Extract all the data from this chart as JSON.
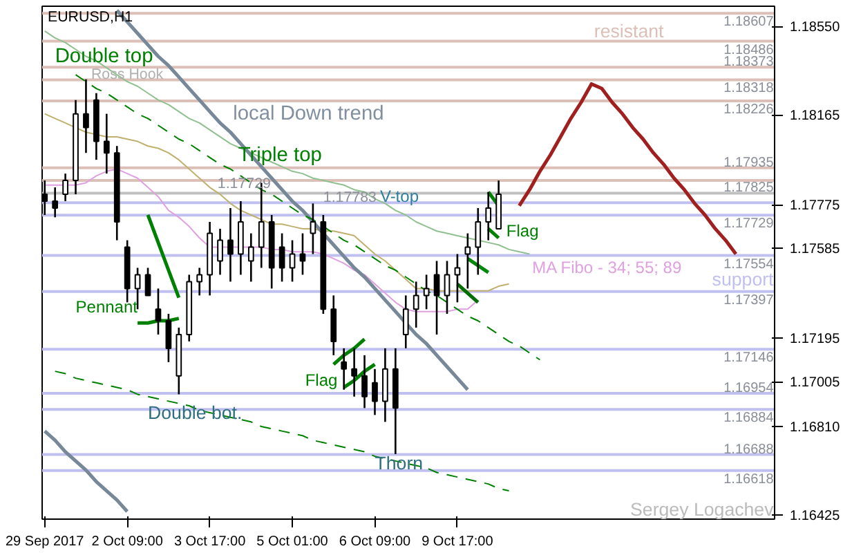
{
  "chart_data": {
    "type": "candlestick",
    "title": "EURUSD,H1",
    "color": "#000000",
    "categories": [
      "29 Sep 2017",
      null,
      null,
      null,
      null,
      null,
      null,
      null,
      "2 Oct 09:00",
      null,
      null,
      null,
      null,
      null,
      null,
      null,
      "3 Oct 17:00",
      null,
      null,
      null,
      null,
      null,
      null,
      null,
      "5 Oct 01:00",
      null,
      null,
      null,
      null,
      null,
      null,
      null,
      "6 Oct 09:00",
      null,
      null,
      null,
      null,
      null,
      null,
      null,
      "9 Oct 17:00",
      null,
      null,
      null,
      null,
      null,
      null,
      null,
      null,
      null,
      null,
      null,
      null,
      null,
      null,
      null,
      null,
      null,
      null,
      null,
      null,
      null,
      null,
      null,
      null,
      null,
      null,
      null,
      null,
      null,
      null
    ],
    "ohlc": [
      [
        1.1782,
        1.1788,
        1.1773,
        1.1779
      ],
      [
        1.1779,
        1.1785,
        1.1772,
        1.1776
      ],
      [
        1.1782,
        1.1791,
        1.1779,
        1.1788
      ],
      [
        1.1788,
        1.1823,
        1.1782,
        1.1817
      ],
      [
        1.1817,
        1.1832,
        1.18,
        1.1811
      ],
      [
        1.1823,
        1.1826,
        1.1797,
        1.1805
      ],
      [
        1.1805,
        1.1817,
        1.1791,
        1.18
      ],
      [
        1.18,
        1.1803,
        1.1762,
        1.177
      ],
      [
        1.1759,
        1.1762,
        1.1735,
        1.1741
      ],
      [
        1.1741,
        1.175,
        1.1732,
        1.1747
      ],
      [
        1.1747,
        1.175,
        1.1738,
        1.1738
      ],
      [
        1.1732,
        1.1741,
        1.1721,
        1.1727
      ],
      [
        1.1727,
        1.173,
        1.1709,
        1.1715
      ],
      [
        1.1703,
        1.1724,
        1.1695,
        1.1721
      ],
      [
        1.1721,
        1.1747,
        1.1718,
        1.1744
      ],
      [
        1.1744,
        1.175,
        1.1738,
        1.1747
      ],
      [
        1.1747,
        1.177,
        1.1738,
        1.1765
      ],
      [
        1.1753,
        1.1767,
        1.1747,
        1.1762
      ],
      [
        1.1762,
        1.1776,
        1.1744,
        1.1756
      ],
      [
        1.1756,
        1.1779,
        1.1747,
        1.177
      ],
      [
        1.1753,
        1.1765,
        1.1744,
        1.1759
      ],
      [
        1.1759,
        1.1787,
        1.175,
        1.177
      ],
      [
        1.177,
        1.1773,
        1.1741,
        1.175
      ],
      [
        1.1759,
        1.1765,
        1.1744,
        1.175
      ],
      [
        1.175,
        1.1762,
        1.1744,
        1.1756
      ],
      [
        1.1756,
        1.1765,
        1.1747,
        1.1753
      ],
      [
        1.1765,
        1.1778,
        1.1756,
        1.177
      ],
      [
        1.177,
        1.1773,
        1.173,
        1.1732
      ],
      [
        1.1732,
        1.1738,
        1.1712,
        1.1718
      ],
      [
        1.1709,
        1.1715,
        1.1697,
        1.1706
      ],
      [
        1.1706,
        1.1715,
        1.1694,
        1.1703
      ],
      [
        1.1703,
        1.1712,
        1.1689,
        1.1694
      ],
      [
        1.17,
        1.1706,
        1.1686,
        1.1692
      ],
      [
        1.1692,
        1.1715,
        1.1683,
        1.1706
      ],
      [
        1.1706,
        1.1715,
        1.1669,
        1.1689
      ],
      [
        1.1721,
        1.1738,
        1.1715,
        1.1732
      ],
      [
        1.1732,
        1.1744,
        1.1724,
        1.1738
      ],
      [
        1.1738,
        1.1747,
        1.1732,
        1.1741
      ],
      [
        1.1747,
        1.1753,
        1.1721,
        1.1738
      ],
      [
        1.1738,
        1.1753,
        1.173,
        1.1747
      ],
      [
        1.1747,
        1.1756,
        1.1735,
        1.175
      ],
      [
        1.1756,
        1.1765,
        1.1741,
        1.1759
      ],
      [
        1.1759,
        1.1776,
        1.1747,
        1.177
      ],
      [
        1.177,
        1.1783,
        1.1762,
        1.1776
      ],
      [
        1.1767,
        1.1788,
        1.1767,
        1.1782
      ],
      null,
      null,
      null,
      null,
      null,
      null,
      null,
      null,
      null,
      null,
      null,
      null,
      null,
      null,
      null,
      null,
      null,
      null,
      null,
      null,
      null,
      null,
      null,
      null,
      null,
      null
    ],
    "series": [
      {
        "type": "line",
        "color": "#90c090",
        "values": [
          1.1853,
          1.185,
          1.1848,
          1.1845,
          1.1842,
          1.184,
          1.1837,
          1.1834,
          1.1831,
          1.1829,
          1.1826,
          1.1823,
          1.1821,
          1.1818,
          1.1815,
          1.1813,
          1.181,
          1.1807,
          1.1804,
          1.1802,
          1.18,
          1.1798,
          1.1796,
          1.1794,
          1.1792,
          1.1791,
          1.1789,
          1.1788,
          1.1787,
          1.1786,
          1.1784,
          1.1783,
          1.178,
          1.1778,
          1.1775,
          1.1773,
          1.177,
          1.1768,
          1.1766,
          1.1765,
          1.1764,
          1.1763,
          1.1762,
          1.1761,
          1.176,
          1.1758,
          1.1757,
          1.1756,
          null,
          null,
          null,
          null,
          null,
          null,
          null,
          null,
          null,
          null,
          null,
          null,
          null,
          null,
          null,
          null,
          null,
          null,
          null,
          null,
          null,
          null,
          null
        ]
      },
      {
        "type": "line",
        "color": "#c0b070",
        "values": [
          1.1817,
          1.1815,
          1.1813,
          1.1811,
          1.1809,
          1.1808,
          1.1807,
          1.1807,
          1.1806,
          1.1805,
          1.1803,
          1.1802,
          1.18,
          1.1797,
          1.1793,
          1.1789,
          1.1785,
          1.1782,
          1.1778,
          1.1775,
          1.1773,
          1.1771,
          1.1769,
          1.1769,
          1.1768,
          1.1767,
          1.1767,
          1.1766,
          1.1766,
          1.1765,
          1.1764,
          1.176,
          1.1756,
          1.1753,
          1.1749,
          1.1745,
          1.1741,
          1.1741,
          1.174,
          1.174,
          1.174,
          1.174,
          1.174,
          1.174,
          1.1742,
          1.1743,
          null,
          null,
          null,
          null,
          null,
          null,
          null,
          null,
          null,
          null,
          null,
          null,
          null,
          null,
          null,
          null,
          null,
          null,
          null,
          null,
          null,
          null,
          null,
          null,
          null
        ]
      },
      {
        "type": "line",
        "color": "#e0a0e0",
        "values": [
          1.1786,
          1.1786,
          1.1786,
          1.1786,
          1.1787,
          1.179,
          1.1792,
          1.1793,
          1.1791,
          1.1789,
          1.1785,
          1.1781,
          1.1775,
          1.1772,
          1.1768,
          1.1763,
          1.1759,
          1.1759,
          1.1759,
          1.1759,
          1.1759,
          1.1759,
          1.1758,
          1.1758,
          1.1757,
          1.1757,
          1.1757,
          1.1756,
          1.1754,
          1.1752,
          1.1749,
          1.1747,
          1.1743,
          1.1739,
          1.1735,
          1.1732,
          1.1731,
          1.1731,
          1.1731,
          1.1731,
          1.1732,
          1.1732,
          1.1736,
          null,
          null,
          null,
          null,
          null,
          null,
          null,
          null,
          null,
          null,
          null,
          null,
          null,
          null,
          null,
          null,
          null,
          null,
          null,
          null,
          null,
          null,
          null,
          null,
          null,
          null,
          null,
          null
        ]
      },
      {
        "type": "line",
        "color": "#778899",
        "values": [
          null,
          null,
          null,
          null,
          null,
          null,
          null,
          1.1862,
          1.1857,
          1.1852,
          1.1847,
          1.1842,
          1.1838,
          1.1833,
          1.1828,
          1.1823,
          1.1818,
          1.1813,
          1.1809,
          1.1804,
          1.1799,
          1.1794,
          1.1789,
          1.1784,
          1.1779,
          1.1775,
          1.177,
          1.1765,
          1.176,
          1.1755,
          1.175,
          1.1746,
          1.1741,
          1.1736,
          1.1731,
          1.1726,
          1.1721,
          1.1717,
          1.1712,
          1.1707,
          1.1702,
          1.1697,
          null,
          null,
          null,
          null,
          null,
          null,
          null,
          null,
          null,
          null,
          null,
          null,
          null,
          null,
          null,
          null,
          null,
          null,
          null,
          null,
          null,
          null,
          null,
          null,
          null,
          null,
          null,
          null,
          null
        ]
      },
      {
        "type": "line",
        "color": "#778899",
        "values": [
          1.1679,
          1.1675,
          1.167,
          1.1666,
          1.1662,
          1.1657,
          1.1653,
          1.1649,
          1.1644,
          null,
          null,
          null,
          null,
          null,
          null,
          null,
          null,
          null,
          null,
          null,
          null,
          null,
          null,
          null,
          null,
          null,
          null,
          null,
          null,
          null,
          null,
          null,
          null,
          null,
          null,
          null,
          null,
          null,
          null,
          null,
          null,
          null,
          null,
          null,
          null,
          null,
          null,
          null,
          null,
          null,
          null,
          null,
          null,
          null,
          null,
          null,
          null,
          null,
          null,
          null,
          null,
          null,
          null,
          null,
          null,
          null,
          null,
          null,
          null,
          null,
          null
        ]
      },
      {
        "type": "line",
        "color": "#008000",
        "line_style": "dashed",
        "values": [
          null,
          null,
          null,
          1.1834,
          1.1831,
          1.1828,
          1.1826,
          1.1823,
          1.182,
          1.1817,
          1.1815,
          1.1812,
          1.1809,
          1.1806,
          1.1804,
          1.1801,
          1.1798,
          1.1795,
          1.1793,
          1.179,
          1.1787,
          1.1784,
          1.1782,
          1.1779,
          1.1776,
          1.1773,
          1.1771,
          1.1768,
          1.1765,
          1.1762,
          1.176,
          1.1757,
          1.1754,
          1.1751,
          1.1749,
          1.1746,
          1.1743,
          1.174,
          1.1738,
          1.1735,
          1.1732,
          1.1729,
          1.1727,
          1.1724,
          1.1721,
          1.1718,
          1.1716,
          1.1713,
          1.171,
          null,
          null,
          null,
          null,
          null,
          null,
          null,
          null,
          null,
          null,
          null,
          null,
          null,
          null,
          null,
          null,
          null,
          null,
          null,
          null,
          null,
          null
        ]
      },
      {
        "type": "line",
        "color": "#008000",
        "line_style": "dashed",
        "values": [
          null,
          1.1705,
          1.1704,
          1.1702,
          1.1701,
          1.17,
          1.1699,
          1.1698,
          1.1697,
          1.1695,
          1.1694,
          1.1693,
          1.1692,
          1.1691,
          1.169,
          1.1688,
          1.1687,
          1.1686,
          1.1685,
          1.1684,
          1.1683,
          1.1681,
          1.168,
          1.1679,
          1.1678,
          1.1677,
          1.1675,
          1.1674,
          1.1673,
          1.1672,
          1.1671,
          1.167,
          1.1668,
          1.1667,
          1.1666,
          1.1665,
          1.1664,
          1.1663,
          1.1661,
          1.166,
          1.1659,
          1.1658,
          1.1657,
          1.1656,
          1.1654,
          1.1653,
          null,
          null,
          null,
          null,
          null,
          null,
          null,
          null,
          null,
          null,
          null,
          null,
          null,
          null,
          null,
          null,
          null,
          null,
          null,
          null,
          null,
          null,
          null,
          null,
          null
        ]
      },
      {
        "type": "line",
        "color": "#008000",
        "values": [
          null,
          null,
          null,
          null,
          null,
          null,
          null,
          null,
          null,
          null,
          1.1773,
          1.1761,
          1.1749,
          1.1737,
          null,
          null,
          null,
          null,
          null,
          null,
          null,
          null,
          null,
          null,
          null,
          null,
          null,
          null,
          null,
          null,
          null,
          null,
          null,
          null,
          null,
          null,
          null,
          null,
          null,
          null,
          null,
          null,
          null,
          null,
          null,
          null,
          null,
          null,
          null,
          null,
          null,
          null,
          null,
          null,
          null,
          null,
          null,
          null,
          null,
          null,
          null,
          null,
          null,
          null,
          null,
          null,
          null,
          null,
          null,
          null,
          null
        ]
      },
      {
        "type": "line",
        "color": "#008000",
        "values": [
          null,
          null,
          null,
          null,
          null,
          null,
          null,
          null,
          null,
          1.1726,
          1.1726,
          1.1727,
          1.1727,
          1.1728,
          null,
          null,
          null,
          null,
          null,
          null,
          null,
          null,
          null,
          null,
          null,
          null,
          null,
          null,
          null,
          null,
          null,
          null,
          null,
          null,
          null,
          null,
          null,
          null,
          null,
          null,
          null,
          null,
          null,
          null,
          null,
          null,
          null,
          null,
          null,
          null,
          null,
          null,
          null,
          null,
          null,
          null,
          null,
          null,
          null,
          null,
          null,
          null,
          null,
          null,
          null,
          null,
          null,
          null,
          null,
          null,
          null
        ]
      },
      {
        "type": "line",
        "color": "#008000",
        "values": [
          null,
          null,
          null,
          null,
          null,
          null,
          null,
          null,
          null,
          null,
          null,
          null,
          null,
          null,
          null,
          null,
          null,
          null,
          null,
          null,
          null,
          null,
          null,
          null,
          null,
          null,
          null,
          null,
          1.1708,
          1.1712,
          1.1715,
          1.1719,
          null,
          null,
          null,
          null,
          null,
          null,
          null,
          null,
          null,
          null,
          null,
          null,
          null,
          null,
          null,
          null,
          null,
          null,
          null,
          null,
          null,
          null,
          null,
          null,
          null,
          null,
          null,
          null,
          null,
          null,
          null,
          null,
          null,
          null,
          null,
          null,
          null,
          null,
          null
        ]
      },
      {
        "type": "line",
        "color": "#008000",
        "values": [
          null,
          null,
          null,
          null,
          null,
          null,
          null,
          null,
          null,
          null,
          null,
          null,
          null,
          null,
          null,
          null,
          null,
          null,
          null,
          null,
          null,
          null,
          null,
          null,
          null,
          null,
          null,
          null,
          null,
          1.1698,
          1.1701,
          1.1705,
          1.1708,
          null,
          null,
          null,
          null,
          null,
          null,
          null,
          null,
          null,
          null,
          null,
          null,
          null,
          null,
          null,
          null,
          null,
          null,
          null,
          null,
          null,
          null,
          null,
          null,
          null,
          null,
          null,
          null,
          null,
          null,
          null,
          null,
          null,
          null,
          null,
          null,
          null,
          null
        ]
      },
      {
        "type": "line",
        "color": "#008000",
        "values": [
          null,
          null,
          null,
          null,
          null,
          null,
          null,
          null,
          null,
          null,
          null,
          null,
          null,
          null,
          null,
          null,
          null,
          null,
          null,
          null,
          null,
          null,
          null,
          null,
          null,
          null,
          null,
          null,
          null,
          null,
          null,
          null,
          null,
          null,
          null,
          null,
          null,
          null,
          null,
          null,
          null,
          null,
          null,
          1.1783,
          1.1777,
          null,
          null,
          null,
          null,
          null,
          null,
          null,
          null,
          null,
          null,
          null,
          null,
          null,
          null,
          null,
          null,
          null,
          null,
          null,
          null,
          null,
          null,
          null,
          null,
          null,
          null
        ]
      },
      {
        "type": "line",
        "color": "#008000",
        "values": [
          null,
          null,
          null,
          null,
          null,
          null,
          null,
          null,
          null,
          null,
          null,
          null,
          null,
          null,
          null,
          null,
          null,
          null,
          null,
          null,
          null,
          null,
          null,
          null,
          null,
          null,
          null,
          null,
          null,
          null,
          null,
          null,
          null,
          null,
          null,
          null,
          null,
          null,
          null,
          null,
          null,
          null,
          null,
          1.1767,
          1.1763,
          null,
          null,
          null,
          null,
          null,
          null,
          null,
          null,
          null,
          null,
          null,
          null,
          null,
          null,
          null,
          null,
          null,
          null,
          null,
          null,
          null,
          null,
          null,
          null,
          null,
          null
        ]
      },
      {
        "type": "line",
        "color": "#00880a",
        "values": [
          null,
          null,
          null,
          null,
          null,
          null,
          null,
          null,
          null,
          null,
          null,
          null,
          null,
          null,
          null,
          null,
          null,
          null,
          null,
          null,
          null,
          null,
          null,
          null,
          null,
          null,
          null,
          null,
          null,
          null,
          null,
          null,
          null,
          null,
          null,
          null,
          null,
          null,
          null,
          null,
          null,
          1.1754,
          1.1751,
          1.1748,
          null,
          null,
          null,
          null,
          null,
          null,
          null,
          null,
          null,
          null,
          null,
          null,
          null,
          null,
          null,
          null,
          null,
          null,
          null,
          null,
          null,
          null,
          null,
          null,
          null,
          null,
          null
        ]
      },
      {
        "type": "line",
        "color": "#006e00",
        "values": [
          null,
          null,
          null,
          null,
          null,
          null,
          null,
          null,
          null,
          null,
          null,
          null,
          null,
          null,
          null,
          null,
          null,
          null,
          null,
          null,
          null,
          null,
          null,
          null,
          null,
          null,
          null,
          null,
          null,
          null,
          null,
          null,
          null,
          null,
          null,
          null,
          null,
          null,
          null,
          null,
          1.1743,
          1.1739,
          1.1735,
          null,
          null,
          null,
          null,
          null,
          null,
          null,
          null,
          null,
          null,
          null,
          null,
          null,
          null,
          null,
          null,
          null,
          null,
          null,
          null,
          null,
          null,
          null,
          null,
          null,
          null,
          null,
          null
        ]
      },
      {
        "type": "line",
        "color": "#a02020",
        "values": [
          null,
          null,
          null,
          null,
          null,
          null,
          null,
          null,
          null,
          null,
          null,
          null,
          null,
          null,
          null,
          null,
          null,
          null,
          null,
          null,
          null,
          null,
          null,
          null,
          null,
          null,
          null,
          null,
          null,
          null,
          null,
          null,
          null,
          null,
          null,
          null,
          null,
          null,
          null,
          null,
          null,
          null,
          null,
          null,
          null,
          null,
          1.1777,
          1.1784,
          1.1792,
          1.1799,
          1.1807,
          1.1815,
          1.1822,
          1.183,
          1.1828,
          1.1822,
          1.1817,
          1.1811,
          1.1806,
          1.18,
          1.1795,
          1.1789,
          1.1784,
          1.1778,
          1.1773,
          1.1767,
          1.1762,
          1.1756,
          null,
          null,
          null
        ]
      }
    ],
    "ref_lines": [
      {
        "axis": "y",
        "value": 1.18607,
        "label": "1.18607",
        "color": "#dcc0b8"
      },
      {
        "axis": "y",
        "value": 1.18486,
        "label": "1.18486",
        "color": "#dcc0b8"
      },
      {
        "axis": "y",
        "value": 1.18373,
        "label": "1.18373",
        "color": "#dcc0b8"
      },
      {
        "axis": "y",
        "value": 1.18318,
        "label": "1.18318",
        "color": "#dcc0b8"
      },
      {
        "axis": "y",
        "value": 1.18226,
        "label": "1.18226",
        "color": "#dcc0b8"
      },
      {
        "axis": "y",
        "value": 1.17935,
        "label": "1.17935",
        "color": "#dcc0b8"
      },
      {
        "axis": "y",
        "value": 1.1788,
        "label": null,
        "color": "#dcc0b8"
      },
      {
        "axis": "y",
        "value": 1.17825,
        "label": "1.17825",
        "color": "#c0c0c0"
      },
      {
        "axis": "y",
        "value": 1.17783,
        "label": null,
        "color": "#c0c0f0"
      },
      {
        "axis": "y",
        "value": 1.17729,
        "label": "1.17729",
        "color": "#c0c0f0"
      },
      {
        "axis": "y",
        "value": 1.17554,
        "label": "1.17554",
        "color": "#c0c0f0"
      },
      {
        "axis": "y",
        "value": 1.17397,
        "label": "1.17397",
        "color": "#c0c0f0"
      },
      {
        "axis": "y",
        "value": 1.17146,
        "label": "1.17146",
        "color": "#c0c0f0"
      },
      {
        "axis": "y",
        "value": 1.16954,
        "label": "1.16954",
        "color": "#c0c0f0"
      },
      {
        "axis": "y",
        "value": 1.16884,
        "label": "1.16884",
        "color": "#c0c0f0"
      },
      {
        "axis": "y",
        "value": 1.16688,
        "label": "1.16688",
        "color": "#c0c0f0"
      },
      {
        "axis": "y",
        "value": 1.16618,
        "label": "1.16618",
        "color": "#c0c0f0"
      }
    ],
    "annotations": [
      "Double top",
      "Ross Hook",
      "local Down trend",
      "Triple top",
      "1.17729",
      "1.17783",
      "V-top",
      "Flag",
      "Pennant",
      "Flag",
      "Double bot.",
      "Thorn",
      "MA Fibo - 34; 55; 89",
      "support",
      "resistant",
      "Sergey Logachev"
    ],
    "ylim": [
      1.16407,
      1.18638
    ],
    "yticks": [
      {
        "value": 1.1855,
        "label": "1.18550"
      },
      {
        "value": 1.18165,
        "label": "1.18165"
      },
      {
        "value": 1.17775,
        "label": "1.17775"
      },
      {
        "value": 1.17585,
        "label": "1.17585"
      },
      {
        "value": 1.17195,
        "label": "1.17195"
      },
      {
        "value": 1.17005,
        "label": "1.17005"
      },
      {
        "value": 1.1681,
        "label": "1.16810"
      },
      {
        "value": 1.16425,
        "label": "1.16425"
      }
    ],
    "grid": false
  }
}
